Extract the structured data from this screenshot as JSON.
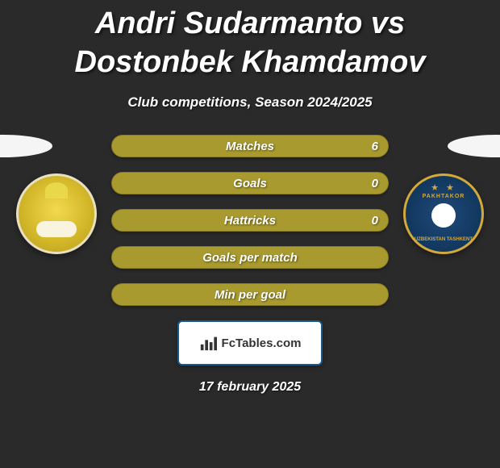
{
  "title": "Andri Sudarmanto vs Dostonbek Khamdamov",
  "subtitle": "Club competitions, Season 2024/2025",
  "colors": {
    "bar_fill": "#a89a2e",
    "bar_border": "#8a7e24",
    "background": "#2a2a2a",
    "badge_border": "#1a5a8a"
  },
  "bars": [
    {
      "label": "Matches",
      "value": "6",
      "show_value": true
    },
    {
      "label": "Goals",
      "value": "0",
      "show_value": true
    },
    {
      "label": "Hattricks",
      "value": "0",
      "show_value": true
    },
    {
      "label": "Goals per match",
      "value": "",
      "show_value": false
    },
    {
      "label": "Min per goal",
      "value": "",
      "show_value": false
    }
  ],
  "footer": {
    "brand": "FcTables.com",
    "date": "17 february 2025"
  },
  "logos": {
    "left": {
      "name": "club-logo-left"
    },
    "right": {
      "name": "club-logo-right",
      "top_text": "PAKHTAKOR",
      "bottom_text": "UZBEKISTAN TASHKENT"
    }
  }
}
